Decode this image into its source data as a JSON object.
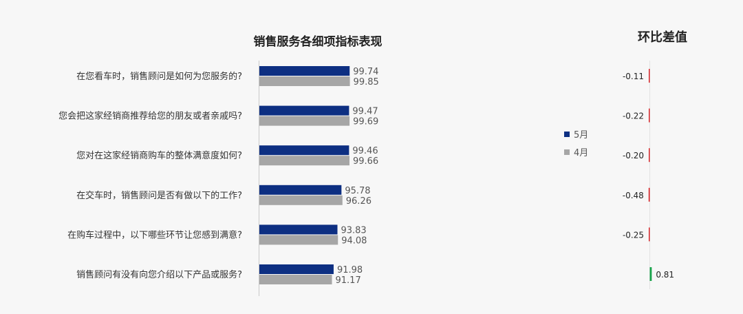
{
  "chart_data": {
    "type": "bar",
    "orientation": "horizontal",
    "title": "销售服务各细项指标表现",
    "categories": [
      "在您看车时，销售顾问是如何为您服务的?",
      "您会把这家经销商推荐给您的朋友或者亲戚吗?",
      "您对在这家经销商购车的整体满意度如何?",
      "在交车时，销售顾问是否有做以下的工作?",
      "在购车过程中，以下哪些环节让您感到满意?",
      "销售顾问有没有向您介绍以下产品或服务?"
    ],
    "series": [
      {
        "name": "5月",
        "color": "#0d2f82",
        "values": [
          99.74,
          99.47,
          99.46,
          95.78,
          93.83,
          91.98
        ]
      },
      {
        "name": "4月",
        "color": "#a6a6a6",
        "values": [
          99.85,
          99.69,
          99.66,
          96.26,
          94.08,
          91.17
        ]
      }
    ],
    "value_labels": {
      "5月": [
        "99.74",
        "99.47",
        "99.46",
        "95.78",
        "93.83",
        "91.98"
      ],
      "4月": [
        "99.85",
        "99.69",
        "99.66",
        "96.26",
        "94.08",
        "91.17"
      ]
    },
    "legend_position": "right",
    "grid": false
  },
  "diff_chart": {
    "title": "环比差值",
    "values": [
      -0.11,
      -0.22,
      -0.2,
      -0.48,
      -0.25,
      0.81
    ],
    "labels": [
      "-0.11",
      "-0.22",
      "-0.20",
      "-0.48",
      "-0.25",
      "0.81"
    ],
    "negative_color": "#d9262a",
    "positive_color": "#17a34a"
  }
}
